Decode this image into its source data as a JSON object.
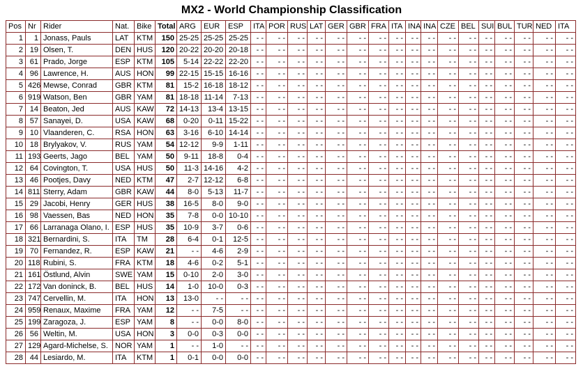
{
  "title": "MX2 - World Championship Classification",
  "table": {
    "header": [
      "Pos",
      "Nr",
      "Rider",
      "Nat.",
      "Bike",
      "Total",
      "ARG",
      "EUR",
      "ESP",
      "ITA",
      "POR",
      "RUS",
      "LAT",
      "GER",
      "GBR",
      "FRA",
      "ITA",
      "INA",
      "INA",
      "CZE",
      "BEL",
      "SUI",
      "BUL",
      "TUR",
      "NED",
      "ITA"
    ],
    "rows": [
      [
        "1",
        "1",
        "Jonass, Pauls",
        "LAT",
        "KTM",
        "150",
        "25-25",
        "25-25",
        "25-25",
        "- -",
        "- -",
        "- -",
        "- -",
        "- -",
        "- -",
        "- -",
        "- -",
        "- -",
        "- -",
        "- -",
        "- -",
        "- -",
        "- -",
        "- -",
        "- -",
        "- -"
      ],
      [
        "2",
        "19",
        "Olsen, T.",
        "DEN",
        "HUS",
        "120",
        "20-22",
        "20-20",
        "20-18",
        "- -",
        "- -",
        "- -",
        "- -",
        "- -",
        "- -",
        "- -",
        "- -",
        "- -",
        "- -",
        "- -",
        "- -",
        "- -",
        "- -",
        "- -",
        "- -",
        "- -"
      ],
      [
        "3",
        "61",
        "Prado, Jorge",
        "ESP",
        "KTM",
        "105",
        "5-14",
        "22-22",
        "22-20",
        "- -",
        "- -",
        "- -",
        "- -",
        "- -",
        "- -",
        "- -",
        "- -",
        "- -",
        "- -",
        "- -",
        "- -",
        "- -",
        "- -",
        "- -",
        "- -",
        "- -"
      ],
      [
        "4",
        "96",
        "Lawrence, H.",
        "AUS",
        "HON",
        "99",
        "22-15",
        "15-15",
        "16-16",
        "- -",
        "- -",
        "- -",
        "- -",
        "- -",
        "- -",
        "- -",
        "- -",
        "- -",
        "- -",
        "- -",
        "- -",
        "- -",
        "- -",
        "- -",
        "- -",
        "- -"
      ],
      [
        "5",
        "426",
        "Mewse, Conrad",
        "GBR",
        "KTM",
        "81",
        "15-2",
        "16-18",
        "18-12",
        "- -",
        "- -",
        "- -",
        "- -",
        "- -",
        "- -",
        "- -",
        "- -",
        "- -",
        "- -",
        "- -",
        "- -",
        "- -",
        "- -",
        "- -",
        "- -",
        "- -"
      ],
      [
        "6",
        "919",
        "Watson, Ben",
        "GBR",
        "YAM",
        "81",
        "18-18",
        "11-14",
        "7-13",
        "- -",
        "- -",
        "- -",
        "- -",
        "- -",
        "- -",
        "- -",
        "- -",
        "- -",
        "- -",
        "- -",
        "- -",
        "- -",
        "- -",
        "- -",
        "- -",
        "- -"
      ],
      [
        "7",
        "14",
        "Beaton, Jed",
        "AUS",
        "KAW",
        "72",
        "14-13",
        "13-4",
        "13-15",
        "- -",
        "- -",
        "- -",
        "- -",
        "- -",
        "- -",
        "- -",
        "- -",
        "- -",
        "- -",
        "- -",
        "- -",
        "- -",
        "- -",
        "- -",
        "- -",
        "- -"
      ],
      [
        "8",
        "57",
        "Sanayei, D.",
        "USA",
        "KAW",
        "68",
        "0-20",
        "0-11",
        "15-22",
        "- -",
        "- -",
        "- -",
        "- -",
        "- -",
        "- -",
        "- -",
        "- -",
        "- -",
        "- -",
        "- -",
        "- -",
        "- -",
        "- -",
        "- -",
        "- -",
        "- -"
      ],
      [
        "9",
        "10",
        "Vlaanderen, C.",
        "RSA",
        "HON",
        "63",
        "3-16",
        "6-10",
        "14-14",
        "- -",
        "- -",
        "- -",
        "- -",
        "- -",
        "- -",
        "- -",
        "- -",
        "- -",
        "- -",
        "- -",
        "- -",
        "- -",
        "- -",
        "- -",
        "- -",
        "- -"
      ],
      [
        "10",
        "18",
        "Brylyakov, V.",
        "RUS",
        "YAM",
        "54",
        "12-12",
        "9-9",
        "1-11",
        "- -",
        "- -",
        "- -",
        "- -",
        "- -",
        "- -",
        "- -",
        "- -",
        "- -",
        "- -",
        "- -",
        "- -",
        "- -",
        "- -",
        "- -",
        "- -",
        "- -"
      ],
      [
        "11",
        "193",
        "Geerts, Jago",
        "BEL",
        "YAM",
        "50",
        "9-11",
        "18-8",
        "0-4",
        "- -",
        "- -",
        "- -",
        "- -",
        "- -",
        "- -",
        "- -",
        "- -",
        "- -",
        "- -",
        "- -",
        "- -",
        "- -",
        "- -",
        "- -",
        "- -",
        "- -"
      ],
      [
        "12",
        "64",
        "Covington, T.",
        "USA",
        "HUS",
        "50",
        "11-3",
        "14-16",
        "4-2",
        "- -",
        "- -",
        "- -",
        "- -",
        "- -",
        "- -",
        "- -",
        "- -",
        "- -",
        "- -",
        "- -",
        "- -",
        "- -",
        "- -",
        "- -",
        "- -",
        "- -"
      ],
      [
        "13",
        "46",
        "Pootjes, Davy",
        "NED",
        "KTM",
        "47",
        "2-7",
        "12-12",
        "6-8",
        "- -",
        "- -",
        "- -",
        "- -",
        "- -",
        "- -",
        "- -",
        "- -",
        "- -",
        "- -",
        "- -",
        "- -",
        "- -",
        "- -",
        "- -",
        "- -",
        "- -"
      ],
      [
        "14",
        "811",
        "Sterry, Adam",
        "GBR",
        "KAW",
        "44",
        "8-0",
        "5-13",
        "11-7",
        "- -",
        "- -",
        "- -",
        "- -",
        "- -",
        "- -",
        "- -",
        "- -",
        "- -",
        "- -",
        "- -",
        "- -",
        "- -",
        "- -",
        "- -",
        "- -",
        "- -"
      ],
      [
        "15",
        "29",
        "Jacobi, Henry",
        "GER",
        "HUS",
        "38",
        "16-5",
        "8-0",
        "9-0",
        "- -",
        "- -",
        "- -",
        "- -",
        "- -",
        "- -",
        "- -",
        "- -",
        "- -",
        "- -",
        "- -",
        "- -",
        "- -",
        "- -",
        "- -",
        "- -",
        "- -"
      ],
      [
        "16",
        "98",
        "Vaessen, Bas",
        "NED",
        "HON",
        "35",
        "7-8",
        "0-0",
        "10-10",
        "- -",
        "- -",
        "- -",
        "- -",
        "- -",
        "- -",
        "- -",
        "- -",
        "- -",
        "- -",
        "- -",
        "- -",
        "- -",
        "- -",
        "- -",
        "- -",
        "- -"
      ],
      [
        "17",
        "66",
        "Larranaga Olano, I.",
        "ESP",
        "HUS",
        "35",
        "10-9",
        "3-7",
        "0-6",
        "- -",
        "- -",
        "- -",
        "- -",
        "- -",
        "- -",
        "- -",
        "- -",
        "- -",
        "- -",
        "- -",
        "- -",
        "- -",
        "- -",
        "- -",
        "- -",
        "- -"
      ],
      [
        "18",
        "321",
        "Bernardini, S.",
        "ITA",
        "TM",
        "28",
        "6-4",
        "0-1",
        "12-5",
        "- -",
        "- -",
        "- -",
        "- -",
        "- -",
        "- -",
        "- -",
        "- -",
        "- -",
        "- -",
        "- -",
        "- -",
        "- -",
        "- -",
        "- -",
        "- -",
        "- -"
      ],
      [
        "19",
        "70",
        "Fernandez, R.",
        "ESP",
        "KAW",
        "21",
        "- -",
        "4-6",
        "2-9",
        "- -",
        "- -",
        "- -",
        "- -",
        "- -",
        "- -",
        "- -",
        "- -",
        "- -",
        "- -",
        "- -",
        "- -",
        "- -",
        "- -",
        "- -",
        "- -",
        "- -"
      ],
      [
        "20",
        "118",
        "Rubini, S.",
        "FRA",
        "KTM",
        "18",
        "4-6",
        "0-2",
        "5-1",
        "- -",
        "- -",
        "- -",
        "- -",
        "- -",
        "- -",
        "- -",
        "- -",
        "- -",
        "- -",
        "- -",
        "- -",
        "- -",
        "- -",
        "- -",
        "- -",
        "- -"
      ],
      [
        "21",
        "161",
        "Östlund, Alvin",
        "SWE",
        "YAM",
        "15",
        "0-10",
        "2-0",
        "3-0",
        "- -",
        "- -",
        "- -",
        "- -",
        "- -",
        "- -",
        "- -",
        "- -",
        "- -",
        "- -",
        "- -",
        "- -",
        "- -",
        "- -",
        "- -",
        "- -",
        "- -"
      ],
      [
        "22",
        "172",
        "Van doninck, B.",
        "BEL",
        "HUS",
        "14",
        "1-0",
        "10-0",
        "0-3",
        "- -",
        "- -",
        "- -",
        "- -",
        "- -",
        "- -",
        "- -",
        "- -",
        "- -",
        "- -",
        "- -",
        "- -",
        "- -",
        "- -",
        "- -",
        "- -",
        "- -"
      ],
      [
        "23",
        "747",
        "Cervellin, M.",
        "ITA",
        "HON",
        "13",
        "13-0",
        "- -",
        "- -",
        "- -",
        "- -",
        "- -",
        "- -",
        "- -",
        "- -",
        "- -",
        "- -",
        "- -",
        "- -",
        "- -",
        "- -",
        "- -",
        "- -",
        "- -",
        "- -",
        "- -"
      ],
      [
        "24",
        "959",
        "Renaux, Maxime",
        "FRA",
        "YAM",
        "12",
        "- -",
        "7-5",
        "- -",
        "- -",
        "- -",
        "- -",
        "- -",
        "- -",
        "- -",
        "- -",
        "- -",
        "- -",
        "- -",
        "- -",
        "- -",
        "- -",
        "- -",
        "- -",
        "- -",
        "- -"
      ],
      [
        "25",
        "199",
        "Zaragoza, J.",
        "ESP",
        "YAM",
        "8",
        "- -",
        "0-0",
        "8-0",
        "- -",
        "- -",
        "- -",
        "- -",
        "- -",
        "- -",
        "- -",
        "- -",
        "- -",
        "- -",
        "- -",
        "- -",
        "- -",
        "- -",
        "- -",
        "- -",
        "- -"
      ],
      [
        "26",
        "56",
        "Weltin, M.",
        "USA",
        "HON",
        "3",
        "0-0",
        "0-3",
        "0-0",
        "- -",
        "- -",
        "- -",
        "- -",
        "- -",
        "- -",
        "- -",
        "- -",
        "- -",
        "- -",
        "- -",
        "- -",
        "- -",
        "- -",
        "- -",
        "- -",
        "- -"
      ],
      [
        "27",
        "129",
        "Agard-Michelse, S.",
        "NOR",
        "YAM",
        "1",
        "- -",
        "1-0",
        "- -",
        "- -",
        "- -",
        "- -",
        "- -",
        "- -",
        "- -",
        "- -",
        "- -",
        "- -",
        "- -",
        "- -",
        "- -",
        "- -",
        "- -",
        "- -",
        "- -",
        "- -"
      ],
      [
        "28",
        "44",
        "Lesiardo, M.",
        "ITA",
        "KTM",
        "1",
        "0-1",
        "0-0",
        "0-0",
        "- -",
        "- -",
        "- -",
        "- -",
        "- -",
        "- -",
        "- -",
        "- -",
        "- -",
        "- -",
        "- -",
        "- -",
        "- -",
        "- -",
        "- -",
        "- -",
        "- -"
      ]
    ]
  }
}
